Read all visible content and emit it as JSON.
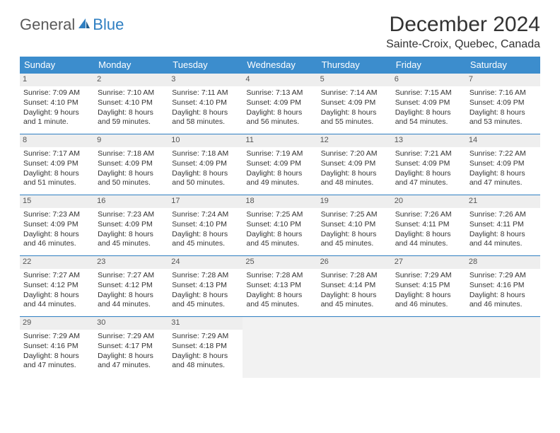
{
  "brand": {
    "word1": "General",
    "word2": "Blue"
  },
  "title": "December 2024",
  "location": "Sainte-Croix, Quebec, Canada",
  "colors": {
    "header_bg": "#3c8dcd",
    "header_text": "#ffffff",
    "row_border": "#2f7fc2",
    "daynum_bg": "#eeeeee",
    "empty_bg": "#f2f2f2",
    "brand_gray": "#5a5a5a",
    "brand_blue": "#2f7fc2",
    "text": "#333333"
  },
  "day_names": [
    "Sunday",
    "Monday",
    "Tuesday",
    "Wednesday",
    "Thursday",
    "Friday",
    "Saturday"
  ],
  "weeks": [
    [
      {
        "n": "1",
        "sunrise": "Sunrise: 7:09 AM",
        "sunset": "Sunset: 4:10 PM",
        "daylight": "Daylight: 9 hours and 1 minute."
      },
      {
        "n": "2",
        "sunrise": "Sunrise: 7:10 AM",
        "sunset": "Sunset: 4:10 PM",
        "daylight": "Daylight: 8 hours and 59 minutes."
      },
      {
        "n": "3",
        "sunrise": "Sunrise: 7:11 AM",
        "sunset": "Sunset: 4:10 PM",
        "daylight": "Daylight: 8 hours and 58 minutes."
      },
      {
        "n": "4",
        "sunrise": "Sunrise: 7:13 AM",
        "sunset": "Sunset: 4:09 PM",
        "daylight": "Daylight: 8 hours and 56 minutes."
      },
      {
        "n": "5",
        "sunrise": "Sunrise: 7:14 AM",
        "sunset": "Sunset: 4:09 PM",
        "daylight": "Daylight: 8 hours and 55 minutes."
      },
      {
        "n": "6",
        "sunrise": "Sunrise: 7:15 AM",
        "sunset": "Sunset: 4:09 PM",
        "daylight": "Daylight: 8 hours and 54 minutes."
      },
      {
        "n": "7",
        "sunrise": "Sunrise: 7:16 AM",
        "sunset": "Sunset: 4:09 PM",
        "daylight": "Daylight: 8 hours and 53 minutes."
      }
    ],
    [
      {
        "n": "8",
        "sunrise": "Sunrise: 7:17 AM",
        "sunset": "Sunset: 4:09 PM",
        "daylight": "Daylight: 8 hours and 51 minutes."
      },
      {
        "n": "9",
        "sunrise": "Sunrise: 7:18 AM",
        "sunset": "Sunset: 4:09 PM",
        "daylight": "Daylight: 8 hours and 50 minutes."
      },
      {
        "n": "10",
        "sunrise": "Sunrise: 7:18 AM",
        "sunset": "Sunset: 4:09 PM",
        "daylight": "Daylight: 8 hours and 50 minutes."
      },
      {
        "n": "11",
        "sunrise": "Sunrise: 7:19 AM",
        "sunset": "Sunset: 4:09 PM",
        "daylight": "Daylight: 8 hours and 49 minutes."
      },
      {
        "n": "12",
        "sunrise": "Sunrise: 7:20 AM",
        "sunset": "Sunset: 4:09 PM",
        "daylight": "Daylight: 8 hours and 48 minutes."
      },
      {
        "n": "13",
        "sunrise": "Sunrise: 7:21 AM",
        "sunset": "Sunset: 4:09 PM",
        "daylight": "Daylight: 8 hours and 47 minutes."
      },
      {
        "n": "14",
        "sunrise": "Sunrise: 7:22 AM",
        "sunset": "Sunset: 4:09 PM",
        "daylight": "Daylight: 8 hours and 47 minutes."
      }
    ],
    [
      {
        "n": "15",
        "sunrise": "Sunrise: 7:23 AM",
        "sunset": "Sunset: 4:09 PM",
        "daylight": "Daylight: 8 hours and 46 minutes."
      },
      {
        "n": "16",
        "sunrise": "Sunrise: 7:23 AM",
        "sunset": "Sunset: 4:09 PM",
        "daylight": "Daylight: 8 hours and 45 minutes."
      },
      {
        "n": "17",
        "sunrise": "Sunrise: 7:24 AM",
        "sunset": "Sunset: 4:10 PM",
        "daylight": "Daylight: 8 hours and 45 minutes."
      },
      {
        "n": "18",
        "sunrise": "Sunrise: 7:25 AM",
        "sunset": "Sunset: 4:10 PM",
        "daylight": "Daylight: 8 hours and 45 minutes."
      },
      {
        "n": "19",
        "sunrise": "Sunrise: 7:25 AM",
        "sunset": "Sunset: 4:10 PM",
        "daylight": "Daylight: 8 hours and 45 minutes."
      },
      {
        "n": "20",
        "sunrise": "Sunrise: 7:26 AM",
        "sunset": "Sunset: 4:11 PM",
        "daylight": "Daylight: 8 hours and 44 minutes."
      },
      {
        "n": "21",
        "sunrise": "Sunrise: 7:26 AM",
        "sunset": "Sunset: 4:11 PM",
        "daylight": "Daylight: 8 hours and 44 minutes."
      }
    ],
    [
      {
        "n": "22",
        "sunrise": "Sunrise: 7:27 AM",
        "sunset": "Sunset: 4:12 PM",
        "daylight": "Daylight: 8 hours and 44 minutes."
      },
      {
        "n": "23",
        "sunrise": "Sunrise: 7:27 AM",
        "sunset": "Sunset: 4:12 PM",
        "daylight": "Daylight: 8 hours and 44 minutes."
      },
      {
        "n": "24",
        "sunrise": "Sunrise: 7:28 AM",
        "sunset": "Sunset: 4:13 PM",
        "daylight": "Daylight: 8 hours and 45 minutes."
      },
      {
        "n": "25",
        "sunrise": "Sunrise: 7:28 AM",
        "sunset": "Sunset: 4:13 PM",
        "daylight": "Daylight: 8 hours and 45 minutes."
      },
      {
        "n": "26",
        "sunrise": "Sunrise: 7:28 AM",
        "sunset": "Sunset: 4:14 PM",
        "daylight": "Daylight: 8 hours and 45 minutes."
      },
      {
        "n": "27",
        "sunrise": "Sunrise: 7:29 AM",
        "sunset": "Sunset: 4:15 PM",
        "daylight": "Daylight: 8 hours and 46 minutes."
      },
      {
        "n": "28",
        "sunrise": "Sunrise: 7:29 AM",
        "sunset": "Sunset: 4:16 PM",
        "daylight": "Daylight: 8 hours and 46 minutes."
      }
    ],
    [
      {
        "n": "29",
        "sunrise": "Sunrise: 7:29 AM",
        "sunset": "Sunset: 4:16 PM",
        "daylight": "Daylight: 8 hours and 47 minutes."
      },
      {
        "n": "30",
        "sunrise": "Sunrise: 7:29 AM",
        "sunset": "Sunset: 4:17 PM",
        "daylight": "Daylight: 8 hours and 47 minutes."
      },
      {
        "n": "31",
        "sunrise": "Sunrise: 7:29 AM",
        "sunset": "Sunset: 4:18 PM",
        "daylight": "Daylight: 8 hours and 48 minutes."
      },
      null,
      null,
      null,
      null
    ]
  ]
}
